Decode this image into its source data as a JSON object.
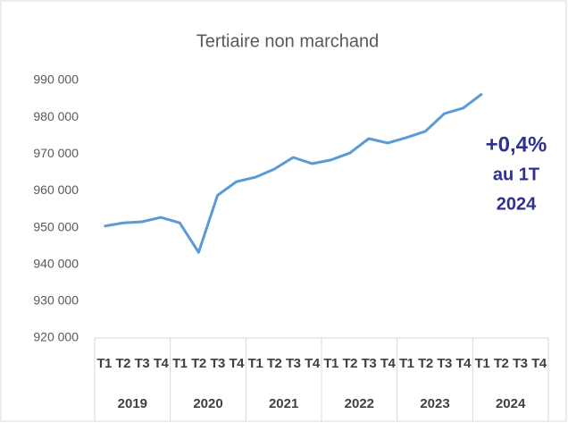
{
  "chart_data": {
    "type": "line",
    "title": "Tertiaire non marchand",
    "categories": [
      "T1",
      "T2",
      "T3",
      "T4",
      "T1",
      "T2",
      "T3",
      "T4",
      "T1",
      "T2",
      "T3",
      "T4",
      "T1",
      "T2",
      "T3",
      "T4",
      "T1",
      "T2",
      "T3",
      "T4",
      "T1",
      "T2",
      "T3",
      "T4"
    ],
    "years": [
      "2019",
      "2020",
      "2021",
      "2022",
      "2023",
      "2024"
    ],
    "series": [
      {
        "name": "Tertiaire non marchand",
        "color": "#5b9bd5",
        "values": [
          950400,
          951300,
          951600,
          952800,
          951300,
          943300,
          958800,
          962500,
          963700,
          965900,
          969100,
          967400,
          968400,
          970300,
          974200,
          973000,
          974500,
          976200,
          981000,
          982500,
          986400,
          null,
          null,
          null
        ]
      }
    ],
    "ylim": [
      920000,
      990000
    ],
    "yticks": [
      {
        "value": 920000,
        "label": "920 000"
      },
      {
        "value": 930000,
        "label": "930 000"
      },
      {
        "value": 940000,
        "label": "940 000"
      },
      {
        "value": 950000,
        "label": "950 000"
      },
      {
        "value": 960000,
        "label": "960 000"
      },
      {
        "value": 970000,
        "label": "970 000"
      },
      {
        "value": 980000,
        "label": "980 000"
      },
      {
        "value": 990000,
        "label": "990 000"
      }
    ],
    "grid": false,
    "annotation": [
      "+0,4%",
      "au 1T",
      "2024"
    ]
  }
}
